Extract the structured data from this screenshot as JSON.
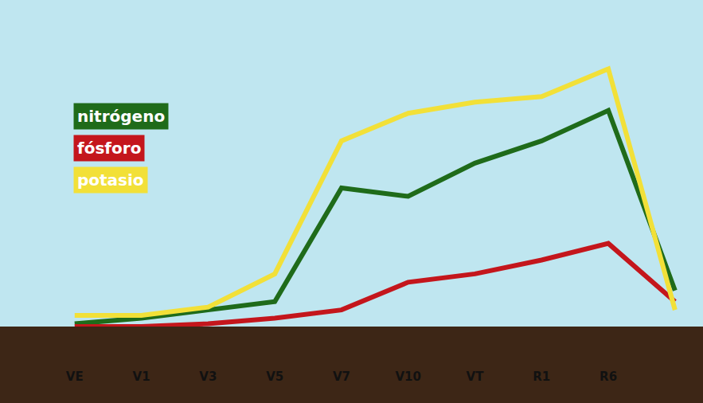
{
  "chart_data": {
    "type": "line",
    "categories": [
      "VE",
      "V1",
      "V3",
      "V5",
      "V7",
      "V10",
      "VT",
      "R1",
      "R6",
      null
    ],
    "series": [
      {
        "name": "nitrógeno",
        "color": "#1f6b1a",
        "values": [
          1,
          3,
          6,
          9,
          50,
          47,
          59,
          67,
          78,
          13
        ]
      },
      {
        "name": "fósforo",
        "color": "#c4161c",
        "values": [
          0,
          0,
          1,
          3,
          6,
          16,
          19,
          24,
          30,
          9
        ]
      },
      {
        "name": "potasio",
        "color": "#f2e038",
        "values": [
          4,
          4,
          7,
          19,
          67,
          77,
          81,
          83,
          93,
          6
        ]
      }
    ],
    "ylim": [
      0,
      115
    ],
    "yticks": [],
    "grid": false,
    "tick_labels": "x",
    "legend": "upper left"
  }
}
